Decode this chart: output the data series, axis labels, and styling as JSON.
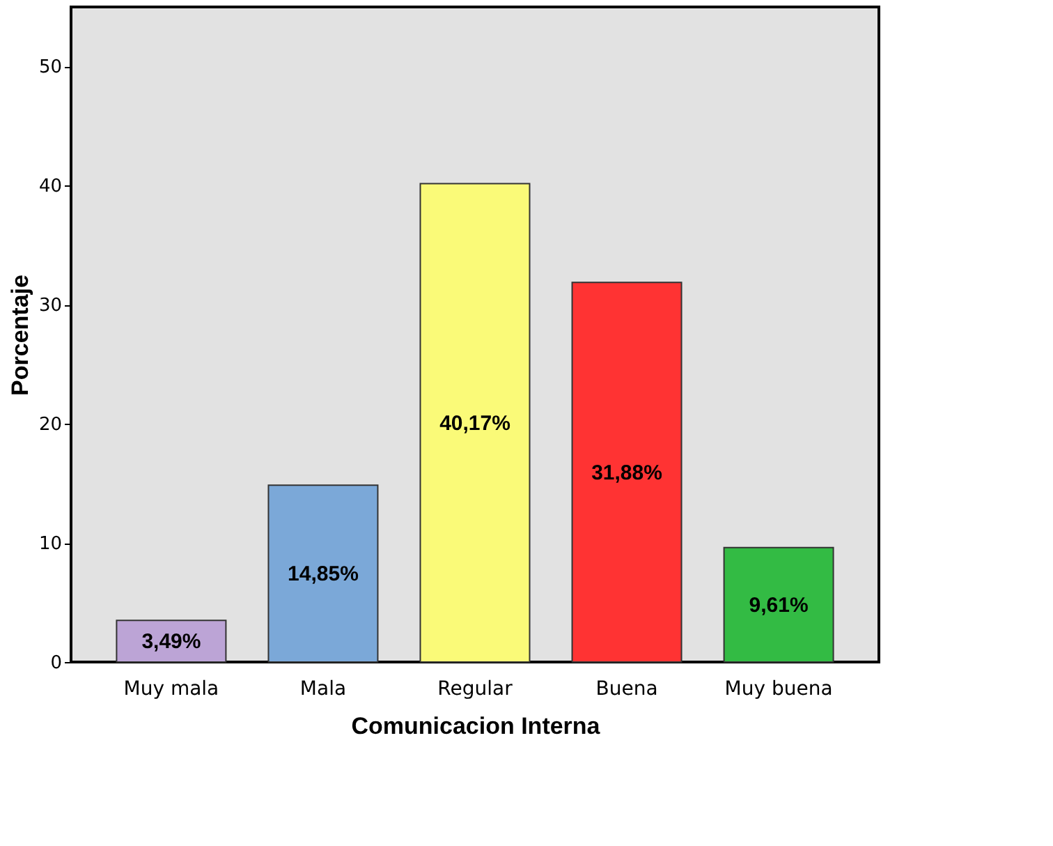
{
  "chart_data": {
    "type": "bar",
    "xlabel": "Comunicacion Interna",
    "ylabel": "Porcentaje",
    "categories": [
      "Muy mala",
      "Mala",
      "Regular",
      "Buena",
      "Muy buena"
    ],
    "values": [
      3.49,
      14.85,
      40.17,
      31.88,
      9.61
    ],
    "value_labels": [
      "3,49%",
      "14,85%",
      "40,17%",
      "31,88%",
      "9,61%"
    ],
    "colors": [
      "#bca4d6",
      "#7ba8d8",
      "#fafa78",
      "#ff3333",
      "#33bb44"
    ],
    "ylim": [
      0,
      55
    ],
    "yticks": [
      0,
      10,
      20,
      30,
      40,
      50
    ],
    "grid": false
  }
}
